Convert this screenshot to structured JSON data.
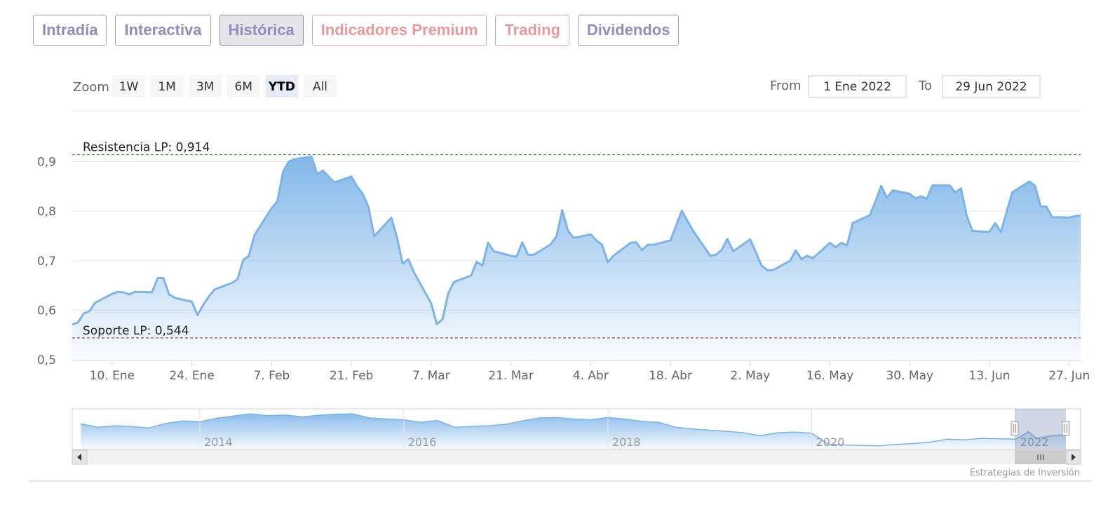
{
  "tabs": [
    {
      "label": "Intradía",
      "style": "normal"
    },
    {
      "label": "Interactiva",
      "style": "normal"
    },
    {
      "label": "Histórica",
      "style": "active"
    },
    {
      "label": "Indicadores Premium",
      "style": "premium"
    },
    {
      "label": "Trading",
      "style": "premium"
    },
    {
      "label": "Dividendos",
      "style": "normal"
    }
  ],
  "range_selector": {
    "zoom_label": "Zoom",
    "buttons": [
      "1W",
      "1M",
      "3M",
      "6M",
      "YTD",
      "All"
    ],
    "selected": "YTD",
    "from_label": "From",
    "from_value": "1 Ene 2022",
    "to_label": "To",
    "to_value": "29 Jun 2022"
  },
  "credits": "Estrategias de Inversión",
  "colors": {
    "series_line": "#7cb4e8",
    "resistance_line": "#2e7d32",
    "support_line": "#8b1a2b",
    "tab_normal": "#8f8dc0",
    "tab_premium": "#e79a9c"
  },
  "chart_data": {
    "type": "area",
    "x_start": "2022-01-03",
    "x_end": "2022-06-29",
    "ylim": [
      0.5,
      0.9
    ],
    "y_ticks": [
      "0,5",
      "0,6",
      "0,7",
      "0,8",
      "0,9"
    ],
    "x_ticks": [
      {
        "date": "2022-01-10",
        "label": "10. Ene"
      },
      {
        "date": "2022-01-24",
        "label": "24. Ene"
      },
      {
        "date": "2022-02-07",
        "label": "7. Feb"
      },
      {
        "date": "2022-02-21",
        "label": "21. Feb"
      },
      {
        "date": "2022-03-07",
        "label": "7. Mar"
      },
      {
        "date": "2022-03-21",
        "label": "21. Mar"
      },
      {
        "date": "2022-04-04",
        "label": "4. Abr"
      },
      {
        "date": "2022-04-18",
        "label": "18. Abr"
      },
      {
        "date": "2022-05-02",
        "label": "2. May"
      },
      {
        "date": "2022-05-16",
        "label": "16. May"
      },
      {
        "date": "2022-05-30",
        "label": "30. May"
      },
      {
        "date": "2022-06-13",
        "label": "13. Jun"
      },
      {
        "date": "2022-06-27",
        "label": "27. Jun"
      }
    ],
    "grid": true,
    "plot_lines": [
      {
        "label": "Resistencia LP: 0,914",
        "value": 0.914
      },
      {
        "label": "Soporte LP: 0,544",
        "value": 0.544
      }
    ],
    "series": [
      {
        "values": [
          [
            "2022-01-03",
            0.571
          ],
          [
            "2022-01-04",
            0.575
          ],
          [
            "2022-01-05",
            0.593
          ],
          [
            "2022-01-06",
            0.598
          ],
          [
            "2022-01-07",
            0.615
          ],
          [
            "2022-01-10",
            0.633
          ],
          [
            "2022-01-11",
            0.637
          ],
          [
            "2022-01-12",
            0.636
          ],
          [
            "2022-01-13",
            0.632
          ],
          [
            "2022-01-14",
            0.637
          ],
          [
            "2022-01-17",
            0.636
          ],
          [
            "2022-01-18",
            0.665
          ],
          [
            "2022-01-19",
            0.665
          ],
          [
            "2022-01-20",
            0.632
          ],
          [
            "2022-01-21",
            0.625
          ],
          [
            "2022-01-24",
            0.617
          ],
          [
            "2022-01-25",
            0.59
          ],
          [
            "2022-01-26",
            0.611
          ],
          [
            "2022-01-27",
            0.628
          ],
          [
            "2022-01-28",
            0.642
          ],
          [
            "2022-01-31",
            0.655
          ],
          [
            "2022-02-01",
            0.662
          ],
          [
            "2022-02-02",
            0.701
          ],
          [
            "2022-02-03",
            0.71
          ],
          [
            "2022-02-04",
            0.752
          ],
          [
            "2022-02-07",
            0.806
          ],
          [
            "2022-02-08",
            0.82
          ],
          [
            "2022-02-09",
            0.879
          ],
          [
            "2022-02-10",
            0.9
          ],
          [
            "2022-02-11",
            0.905
          ],
          [
            "2022-02-14",
            0.91
          ],
          [
            "2022-02-15",
            0.875
          ],
          [
            "2022-02-16",
            0.882
          ],
          [
            "2022-02-17",
            0.87
          ],
          [
            "2022-02-18",
            0.858
          ],
          [
            "2022-02-21",
            0.87
          ],
          [
            "2022-02-22",
            0.85
          ],
          [
            "2022-02-23",
            0.835
          ],
          [
            "2022-02-24",
            0.808
          ],
          [
            "2022-02-25",
            0.749
          ],
          [
            "2022-02-28",
            0.787
          ],
          [
            "2022-03-01",
            0.747
          ],
          [
            "2022-03-02",
            0.694
          ],
          [
            "2022-03-03",
            0.703
          ],
          [
            "2022-03-04",
            0.676
          ],
          [
            "2022-03-07",
            0.614
          ],
          [
            "2022-03-08",
            0.572
          ],
          [
            "2022-03-09",
            0.582
          ],
          [
            "2022-03-10",
            0.634
          ],
          [
            "2022-03-11",
            0.657
          ],
          [
            "2022-03-14",
            0.67
          ],
          [
            "2022-03-15",
            0.698
          ],
          [
            "2022-03-16",
            0.69
          ],
          [
            "2022-03-17",
            0.736
          ],
          [
            "2022-03-18",
            0.719
          ],
          [
            "2022-03-21",
            0.71
          ],
          [
            "2022-03-22",
            0.708
          ],
          [
            "2022-03-23",
            0.737
          ],
          [
            "2022-03-24",
            0.712
          ],
          [
            "2022-03-25",
            0.712
          ],
          [
            "2022-03-28",
            0.733
          ],
          [
            "2022-03-29",
            0.749
          ],
          [
            "2022-03-30",
            0.802
          ],
          [
            "2022-03-31",
            0.761
          ],
          [
            "2022-04-01",
            0.746
          ],
          [
            "2022-04-04",
            0.753
          ],
          [
            "2022-04-05",
            0.741
          ],
          [
            "2022-04-06",
            0.732
          ],
          [
            "2022-04-07",
            0.697
          ],
          [
            "2022-04-08",
            0.71
          ],
          [
            "2022-04-11",
            0.736
          ],
          [
            "2022-04-12",
            0.737
          ],
          [
            "2022-04-13",
            0.721
          ],
          [
            "2022-04-14",
            0.732
          ],
          [
            "2022-04-15",
            0.732
          ],
          [
            "2022-04-18",
            0.741
          ],
          [
            "2022-04-19",
            0.771
          ],
          [
            "2022-04-20",
            0.801
          ],
          [
            "2022-04-21",
            0.78
          ],
          [
            "2022-04-22",
            0.76
          ],
          [
            "2022-04-25",
            0.71
          ],
          [
            "2022-04-26",
            0.712
          ],
          [
            "2022-04-27",
            0.722
          ],
          [
            "2022-04-28",
            0.744
          ],
          [
            "2022-04-29",
            0.719
          ],
          [
            "2022-05-02",
            0.743
          ],
          [
            "2022-05-03",
            0.717
          ],
          [
            "2022-05-04",
            0.69
          ],
          [
            "2022-05-05",
            0.681
          ],
          [
            "2022-05-06",
            0.681
          ],
          [
            "2022-05-09",
            0.7
          ],
          [
            "2022-05-10",
            0.721
          ],
          [
            "2022-05-11",
            0.703
          ],
          [
            "2022-05-12",
            0.71
          ],
          [
            "2022-05-13",
            0.705
          ],
          [
            "2022-05-16",
            0.736
          ],
          [
            "2022-05-17",
            0.727
          ],
          [
            "2022-05-18",
            0.736
          ],
          [
            "2022-05-19",
            0.731
          ],
          [
            "2022-05-20",
            0.776
          ],
          [
            "2022-05-23",
            0.792
          ],
          [
            "2022-05-24",
            0.82
          ],
          [
            "2022-05-25",
            0.851
          ],
          [
            "2022-05-26",
            0.827
          ],
          [
            "2022-05-27",
            0.842
          ],
          [
            "2022-05-30",
            0.835
          ],
          [
            "2022-05-31",
            0.826
          ],
          [
            "2022-06-01",
            0.83
          ],
          [
            "2022-06-02",
            0.825
          ],
          [
            "2022-06-03",
            0.852
          ],
          [
            "2022-06-06",
            0.852
          ],
          [
            "2022-06-07",
            0.838
          ],
          [
            "2022-06-08",
            0.846
          ],
          [
            "2022-06-09",
            0.791
          ],
          [
            "2022-06-10",
            0.76
          ],
          [
            "2022-06-13",
            0.758
          ],
          [
            "2022-06-14",
            0.776
          ],
          [
            "2022-06-15",
            0.758
          ],
          [
            "2022-06-16",
            0.798
          ],
          [
            "2022-06-17",
            0.838
          ],
          [
            "2022-06-20",
            0.86
          ],
          [
            "2022-06-21",
            0.851
          ],
          [
            "2022-06-22",
            0.81
          ],
          [
            "2022-06-23",
            0.809
          ],
          [
            "2022-06-24",
            0.788
          ],
          [
            "2022-06-27",
            0.787
          ],
          [
            "2022-06-28",
            0.79
          ],
          [
            "2022-06-29",
            0.791
          ]
        ]
      }
    ],
    "navigator": {
      "x_ticks": [
        "2014",
        "2016",
        "2018",
        "2020",
        "2022"
      ],
      "values": [
        [
          "2012-11-01",
          0.69
        ],
        [
          "2013-01-01",
          0.6
        ],
        [
          "2013-03-01",
          0.64
        ],
        [
          "2013-05-01",
          0.62
        ],
        [
          "2013-07-01",
          0.58
        ],
        [
          "2013-09-01",
          0.7
        ],
        [
          "2013-11-01",
          0.77
        ],
        [
          "2014-01-01",
          0.75
        ],
        [
          "2014-03-01",
          0.84
        ],
        [
          "2014-05-01",
          0.9
        ],
        [
          "2014-07-01",
          0.96
        ],
        [
          "2014-09-01",
          0.91
        ],
        [
          "2014-11-01",
          0.93
        ],
        [
          "2015-01-01",
          0.88
        ],
        [
          "2015-03-01",
          0.92
        ],
        [
          "2015-05-01",
          0.95
        ],
        [
          "2015-07-01",
          0.96
        ],
        [
          "2015-09-01",
          0.85
        ],
        [
          "2015-11-01",
          0.82
        ],
        [
          "2016-01-01",
          0.8
        ],
        [
          "2016-03-01",
          0.73
        ],
        [
          "2016-05-01",
          0.78
        ],
        [
          "2016-07-01",
          0.6
        ],
        [
          "2016-09-01",
          0.62
        ],
        [
          "2016-11-01",
          0.64
        ],
        [
          "2017-01-01",
          0.68
        ],
        [
          "2017-03-01",
          0.77
        ],
        [
          "2017-05-01",
          0.85
        ],
        [
          "2017-07-01",
          0.86
        ],
        [
          "2017-09-01",
          0.82
        ],
        [
          "2017-11-01",
          0.8
        ],
        [
          "2018-01-01",
          0.86
        ],
        [
          "2018-03-01",
          0.82
        ],
        [
          "2018-05-01",
          0.76
        ],
        [
          "2018-07-01",
          0.73
        ],
        [
          "2018-09-01",
          0.6
        ],
        [
          "2018-11-01",
          0.55
        ],
        [
          "2019-01-01",
          0.52
        ],
        [
          "2019-03-01",
          0.49
        ],
        [
          "2019-05-01",
          0.45
        ],
        [
          "2019-07-01",
          0.37
        ],
        [
          "2019-09-01",
          0.45
        ],
        [
          "2019-11-01",
          0.47
        ],
        [
          "2020-01-01",
          0.44
        ],
        [
          "2020-03-01",
          0.14
        ],
        [
          "2020-05-01",
          0.12
        ],
        [
          "2020-07-01",
          0.11
        ],
        [
          "2020-09-01",
          0.1
        ],
        [
          "2020-11-01",
          0.14
        ],
        [
          "2021-01-01",
          0.16
        ],
        [
          "2021-03-01",
          0.2
        ],
        [
          "2021-05-01",
          0.28
        ],
        [
          "2021-07-01",
          0.26
        ],
        [
          "2021-09-01",
          0.3
        ],
        [
          "2021-11-01",
          0.29
        ],
        [
          "2022-01-01",
          0.28
        ],
        [
          "2022-02-15",
          0.48
        ],
        [
          "2022-03-15",
          0.3
        ],
        [
          "2022-05-01",
          0.36
        ],
        [
          "2022-06-29",
          0.4
        ]
      ]
    }
  }
}
